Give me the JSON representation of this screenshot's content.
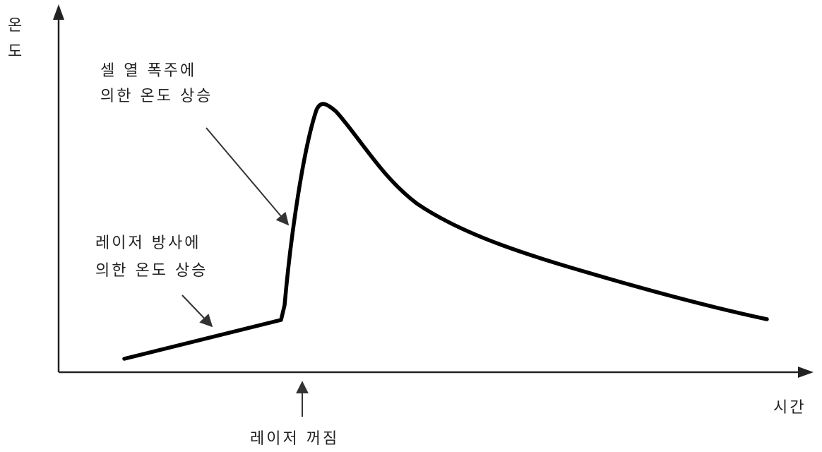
{
  "diagram": {
    "y_axis_label": [
      "온",
      "도"
    ],
    "x_axis_label": "시간",
    "annotations": {
      "laser_heating": [
        "레이저 방사에",
        "의한 온도 상승"
      ],
      "thermal_runaway": [
        "셀 열 폭주에",
        "의한 온도 상승"
      ],
      "laser_off": "레이저 꺼짐"
    },
    "colors": {
      "axis": "#222222",
      "curve": "#000000",
      "text": "#222222"
    }
  }
}
